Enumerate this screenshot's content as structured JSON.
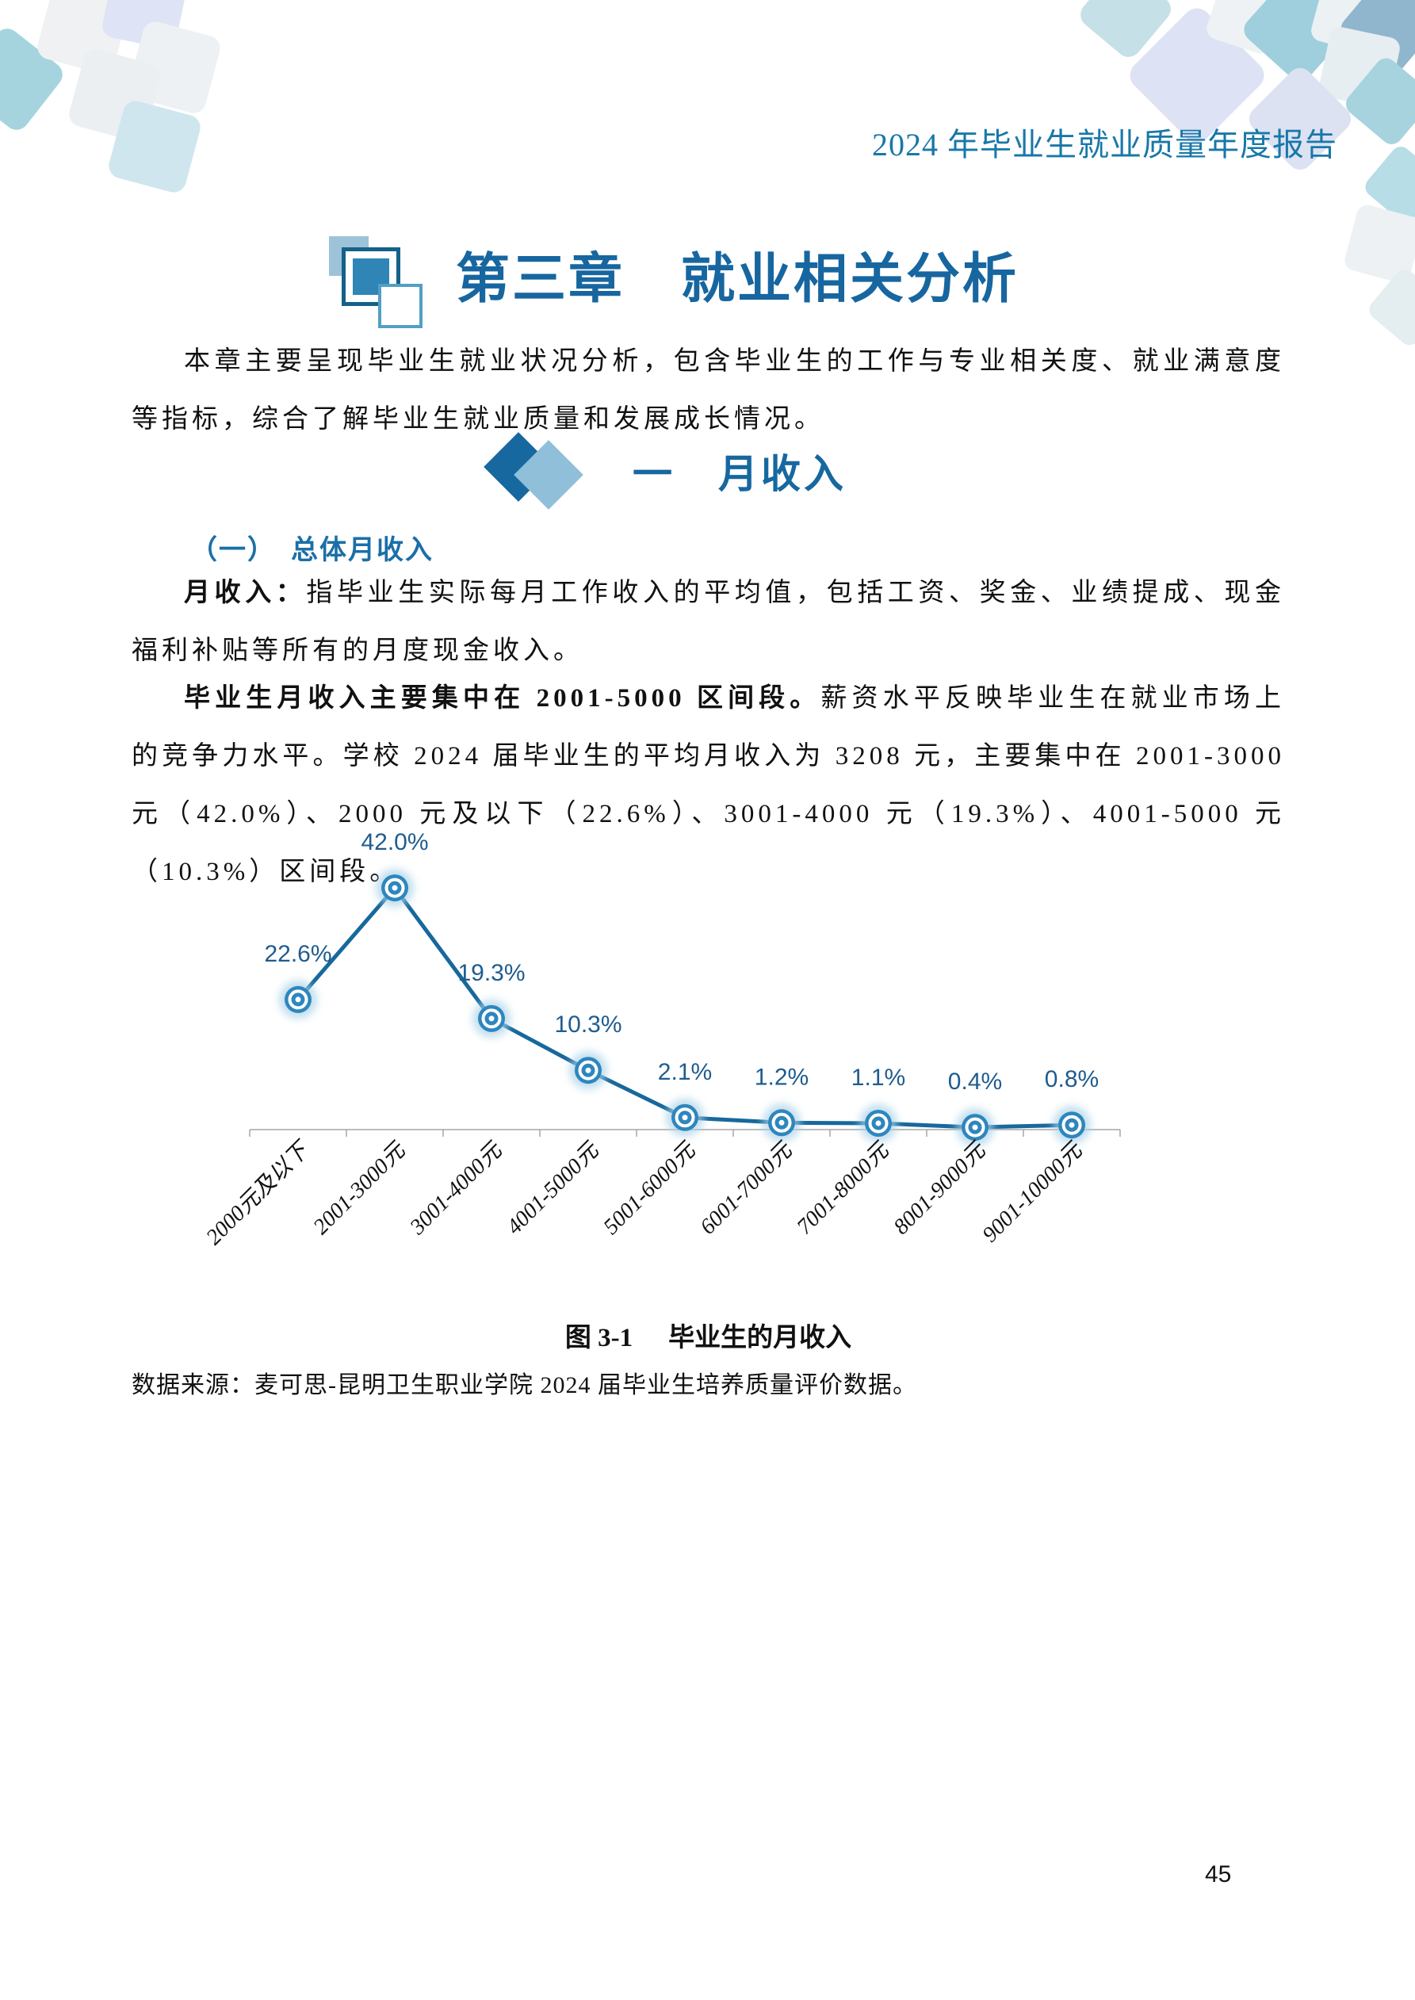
{
  "header": {
    "title": "2024 年毕业生就业质量年度报告"
  },
  "chapter": {
    "title": "第三章　就业相关分析",
    "intro": "本章主要呈现毕业生就业状况分析，包含毕业生的工作与专业相关度、就业满意度等指标，综合了解毕业生就业质量和发展成长情况。"
  },
  "section": {
    "title": "一　月收入"
  },
  "subsection": {
    "title": "（一）　总体月收入"
  },
  "paragraphs": {
    "definition": {
      "lead": "月收入：",
      "body": "指毕业生实际每月工作收入的平均值，包括工资、奖金、业绩提成、现金福利补贴等所有的月度现金收入。"
    },
    "analysis": {
      "lead": "毕业生月收入主要集中在 2001-5000 区间段。",
      "body": "薪资水平反映毕业生在就业市场上的竞争力水平。学校 2024 届毕业生的平均月收入为 3208 元，主要集中在 2001-3000 元（42.0%）、2000 元及以下（22.6%）、3001-4000 元（19.3%）、4001-5000 元（10.3%）区间段。"
    }
  },
  "chart_data": {
    "type": "line",
    "title": "图 3-1　毕业生的月收入",
    "categories": [
      "2000元及以下",
      "2001-3000元",
      "3001-4000元",
      "4001-5000元",
      "5001-6000元",
      "6001-7000元",
      "7001-8000元",
      "8001-9000元",
      "9001-10000元"
    ],
    "values": [
      22.6,
      42.0,
      19.3,
      10.3,
      2.1,
      1.2,
      1.1,
      0.4,
      0.8
    ],
    "labels": [
      "22.6%",
      "42.0%",
      "19.3%",
      "10.3%",
      "2.1%",
      "1.2%",
      "1.1%",
      "0.4%",
      "0.8%"
    ],
    "xlabel": "",
    "ylabel": "",
    "ylim": [
      0,
      45
    ],
    "grid": false,
    "legend": "none",
    "colors": {
      "line": "#17689C",
      "marker": "#2E86BE",
      "halo": "#A9D2E8",
      "label": "#1F5C8F",
      "axis": "#A6A6A6"
    }
  },
  "figure": {
    "caption_prefix": "图 3-1",
    "caption_title": "毕业生的月收入"
  },
  "source": {
    "text": "数据来源：麦可思-昆明卫生职业学院 2024 届毕业生培养质量评价数据。"
  },
  "page": {
    "number": "45"
  }
}
